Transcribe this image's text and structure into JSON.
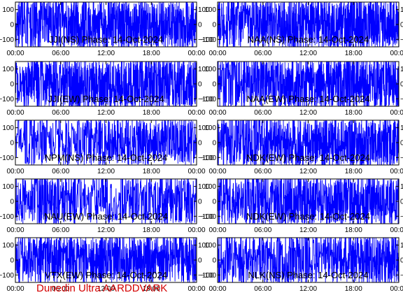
{
  "footer": "Dunedin Ultra AARDDVARK",
  "chart_data": {
    "type": "line",
    "x_ticks": [
      "00:00",
      "06:00",
      "12:00",
      "18:00",
      "00:00"
    ],
    "x_range_hours": [
      0,
      24
    ],
    "y_ticks": [
      100,
      0,
      -100
    ],
    "ylim": [
      -150,
      150
    ],
    "series_color": "#0000ff",
    "panels": [
      {
        "title": "JJI(NS) Phase: 14-Oct-2024",
        "column": "left",
        "row": 1,
        "density": [
          0.55,
          0.6,
          0.65,
          0.7,
          0.75,
          0.8,
          0.85,
          0.95,
          1.0,
          1.0,
          0.9,
          0.85
        ],
        "amplitude": 0.95
      },
      {
        "title": "NAA(NS) Phase: 14-Oct-2024",
        "column": "right",
        "row": 1,
        "density": [
          0.6,
          0.65,
          0.7,
          0.75,
          0.8,
          0.85,
          0.9,
          1.0,
          1.0,
          0.95,
          0.9,
          0.85
        ],
        "amplitude": 0.95
      },
      {
        "title": "JJI(EW) Phase: 14-Oct-2024",
        "column": "left",
        "row": 2,
        "density": [
          0.6,
          0.65,
          0.7,
          0.75,
          0.8,
          0.8,
          0.85,
          0.9,
          0.95,
          0.9,
          0.85,
          0.8
        ],
        "amplitude": 0.95
      },
      {
        "title": "NAA(EW) Phase: 14-Oct-2024",
        "column": "right",
        "row": 2,
        "density": [
          0.6,
          0.65,
          0.75,
          0.8,
          0.85,
          0.9,
          0.9,
          0.95,
          1.0,
          0.95,
          0.85,
          0.8
        ],
        "amplitude": 0.95
      },
      {
        "title": "NPM(NS) Phase: 14-Oct-2024",
        "column": "left",
        "row": 3,
        "density": [
          0.25,
          0.3,
          0.35,
          0.35,
          0.4,
          0.45,
          0.55,
          0.6,
          0.7,
          0.65,
          0.55,
          0.45
        ],
        "amplitude": 0.85
      },
      {
        "title": "NDK(EW) Phase: 14-Oct-2024",
        "column": "right",
        "row": 3,
        "density": [
          0.5,
          0.55,
          0.6,
          0.7,
          0.75,
          0.8,
          0.85,
          0.9,
          0.95,
          0.9,
          0.85,
          0.8
        ],
        "amplitude": 0.95
      },
      {
        "title": "NAU(EW) Phase: 14-Oct-2024",
        "column": "left",
        "row": 4,
        "density": [
          0.5,
          0.55,
          0.6,
          0.55,
          0.45,
          0.35,
          0.3,
          0.35,
          0.45,
          0.5,
          0.55,
          0.5
        ],
        "amplitude": 0.9
      },
      {
        "title": "NDK(EW) Phase: 14-Oct-2024",
        "column": "right",
        "row": 4,
        "density": [
          0.55,
          0.6,
          0.65,
          0.7,
          0.75,
          0.8,
          0.85,
          0.9,
          0.9,
          0.85,
          0.8,
          0.7
        ],
        "amplitude": 0.95
      },
      {
        "title": "VTX(EW) Phase: 14-Oct-2024",
        "column": "left",
        "row": 5,
        "density": [
          0.55,
          0.6,
          0.65,
          0.7,
          0.75,
          0.8,
          0.85,
          0.9,
          0.85,
          0.8,
          0.75,
          0.7
        ],
        "amplitude": 0.9
      },
      {
        "title": "NLK(NS) Phase: 14-Oct-2024",
        "column": "right",
        "row": 5,
        "density": [
          0.5,
          0.55,
          0.6,
          0.55,
          0.45,
          0.4,
          0.45,
          0.55,
          0.7,
          0.75,
          0.7,
          0.6
        ],
        "amplitude": 0.95
      }
    ]
  }
}
